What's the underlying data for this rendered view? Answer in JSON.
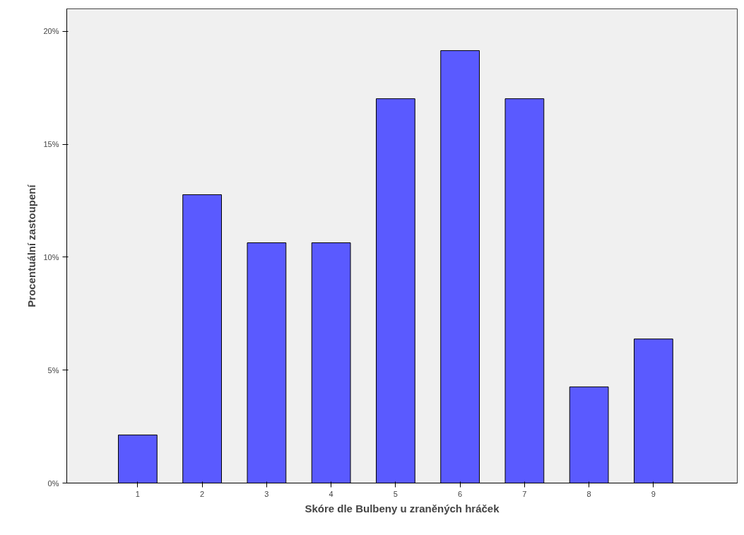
{
  "chart_data": {
    "type": "bar",
    "xlabel": "Skóre dle Bulbeny u zraněných hráček",
    "ylabel": "Procentuální zastoupení",
    "categories": [
      "1",
      "2",
      "3",
      "4",
      "5",
      "6",
      "7",
      "8",
      "9"
    ],
    "values": [
      2.13,
      12.77,
      10.64,
      10.64,
      17.02,
      19.15,
      17.02,
      4.26,
      6.38
    ],
    "color": "#5a5aff",
    "ylim": [
      0,
      21
    ],
    "yticks": [
      {
        "value": 0,
        "label": "0%"
      },
      {
        "value": 5,
        "label": "5%"
      },
      {
        "value": 10,
        "label": "10%"
      },
      {
        "value": 15,
        "label": "15%"
      },
      {
        "value": 20,
        "label": "20%"
      }
    ],
    "grid": false
  }
}
